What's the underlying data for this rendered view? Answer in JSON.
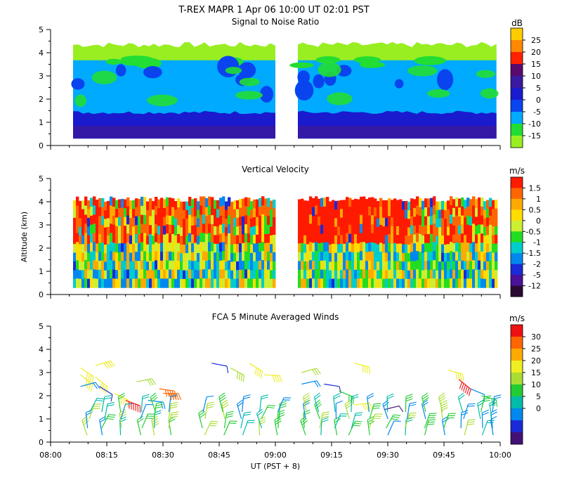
{
  "header": {
    "title": "T-REX   MAPR   1 Apr 06   10:00 UT   02:01   PST"
  },
  "x_axis": {
    "label": "UT  (PST + 8)",
    "tick_labels": [
      "08:00",
      "08:15",
      "08:30",
      "08:45",
      "09:00",
      "09:15",
      "09:30",
      "09:45",
      "10:00"
    ],
    "range_minutes": [
      0,
      120
    ]
  },
  "y_axis": {
    "label": "Altitude (km)",
    "tick_labels": [
      "0",
      "1",
      "2",
      "3",
      "4",
      "5"
    ],
    "range_km": [
      0,
      5
    ]
  },
  "panels": [
    {
      "id": "snr",
      "title": "Signal to Noise Ratio",
      "unit": "dB",
      "colorbar_labels": [
        "25",
        "20",
        "15",
        "10",
        "5",
        "0",
        "-5",
        "-10",
        "-15"
      ],
      "colorbar_colors": [
        "#ffcc00",
        "#ff8800",
        "#ff2200",
        "#5a0a6e",
        "#3a1aa0",
        "#1a1acf",
        "#0a44ee",
        "#00aaff",
        "#22dd33",
        "#99ee22"
      ]
    },
    {
      "id": "vv",
      "title": "Vertical Velocity",
      "unit": "m/s",
      "colorbar_labels": [
        "1.5",
        "1",
        "0.5",
        "0",
        "-0.5",
        "-1",
        "-1.5",
        "-2",
        "-5",
        "-12"
      ],
      "colorbar_colors": [
        "#ff1a00",
        "#ff6600",
        "#ffaa00",
        "#ffdd00",
        "#ccee33",
        "#22dd22",
        "#00cccc",
        "#0088ee",
        "#1a2ad6",
        "#4a1199",
        "#2a0a33"
      ]
    },
    {
      "id": "winds",
      "title": "FCA 5 Minute Averaged Winds",
      "unit": "m/s",
      "colorbar_labels": [
        "30",
        "25",
        "20",
        "15",
        "10",
        "5",
        "0"
      ],
      "colorbar_colors": [
        "#ee1111",
        "#ff6600",
        "#ffaa00",
        "#eeee22",
        "#aadd33",
        "#22cc33",
        "#00bbaa",
        "#0088ee",
        "#1a2ad6",
        "#441177"
      ]
    }
  ],
  "chart_data": [
    {
      "type": "heatmap",
      "title": "Signal to Noise Ratio",
      "unit": "dB",
      "x_range_minutes": [
        0,
        120
      ],
      "ylim": [
        0,
        5
      ],
      "data_segments_minutes": [
        [
          6,
          60
        ],
        [
          66,
          119
        ]
      ],
      "top_of_data_km": 4.1,
      "bottom_of_data_km": 0.3,
      "layers": [
        {
          "alt_km": [
            0.3,
            0.7
          ],
          "value_db": 5
        },
        {
          "alt_km": [
            0.7,
            1.4
          ],
          "value_db": 0
        },
        {
          "alt_km": [
            1.4,
            3.0
          ],
          "value_db": -5
        },
        {
          "alt_km": [
            3.0,
            3.7
          ],
          "value_db": -5
        },
        {
          "alt_km": [
            3.7,
            4.1
          ],
          "value_db": -12
        }
      ]
    },
    {
      "type": "heatmap",
      "title": "Vertical Velocity",
      "unit": "m/s",
      "x_range_minutes": [
        0,
        120
      ],
      "ylim": [
        0,
        5
      ],
      "data_segments_minutes": [
        [
          6,
          60
        ],
        [
          66,
          119
        ]
      ],
      "top_of_data_km": 4.0,
      "bottom_of_data_km": 0.3
    },
    {
      "type": "scatter",
      "title": "FCA 5 Minute Averaged Winds",
      "unit": "m/s",
      "x_range_minutes": [
        0,
        120
      ],
      "ylim": [
        0,
        5
      ],
      "wind_barbs": [
        {
          "t": 8,
          "alt": 3.2,
          "spd": 21
        },
        {
          "t": 8,
          "alt": 2.9,
          "spd": 19
        },
        {
          "t": 8,
          "alt": 2.4,
          "spd": 8
        },
        {
          "t": 12,
          "alt": 3.3,
          "spd": 21
        },
        {
          "t": 12,
          "alt": 2.8,
          "spd": 20
        },
        {
          "t": 13,
          "alt": 2.4,
          "spd": 6
        },
        {
          "t": 17,
          "alt": 2.1,
          "spd": 19
        },
        {
          "t": 20,
          "alt": 1.8,
          "spd": 29
        },
        {
          "t": 23,
          "alt": 2.6,
          "spd": 17
        },
        {
          "t": 26,
          "alt": 1.8,
          "spd": 9
        },
        {
          "t": 29,
          "alt": 2.3,
          "spd": 27
        },
        {
          "t": 30,
          "alt": 2.1,
          "spd": 26
        },
        {
          "t": 43,
          "alt": 3.4,
          "spd": 5
        },
        {
          "t": 48,
          "alt": 3.2,
          "spd": 18
        },
        {
          "t": 53,
          "alt": 3.4,
          "spd": 21
        },
        {
          "t": 57,
          "alt": 2.9,
          "spd": 19
        },
        {
          "t": 67,
          "alt": 3.0,
          "spd": 17
        },
        {
          "t": 67,
          "alt": 2.5,
          "spd": 9
        },
        {
          "t": 73,
          "alt": 2.5,
          "spd": 4
        },
        {
          "t": 77,
          "alt": 2.2,
          "spd": 14
        },
        {
          "t": 81,
          "alt": 3.4,
          "spd": 21
        },
        {
          "t": 81,
          "alt": 1.6,
          "spd": 19
        },
        {
          "t": 89,
          "alt": 1.4,
          "spd": 3
        },
        {
          "t": 106,
          "alt": 3.1,
          "spd": 21
        },
        {
          "t": 109,
          "alt": 2.7,
          "spd": 29
        },
        {
          "t": 112,
          "alt": 2.3,
          "spd": 7
        },
        {
          "t": 115,
          "alt": 2.0,
          "spd": 15
        }
      ],
      "low_level_barbs_alt_km": [
        0.3,
        0.6,
        1.0,
        1.3
      ],
      "low_level_barbs_times_minutes": [
        10,
        14,
        19,
        24,
        28,
        32,
        41,
        46,
        51,
        56,
        61,
        68,
        72,
        76,
        80,
        85,
        90,
        95,
        100,
        105,
        110,
        115,
        118
      ]
    }
  ]
}
